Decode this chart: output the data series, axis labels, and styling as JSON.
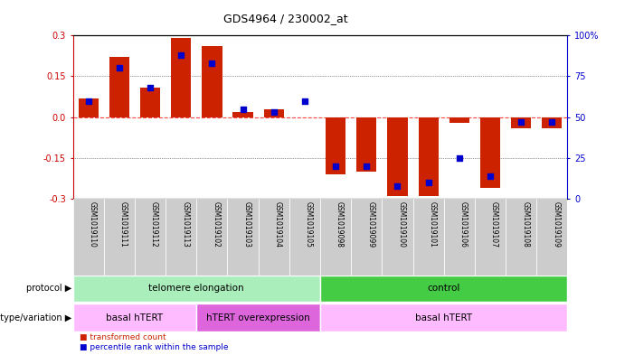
{
  "title": "GDS4964 / 230002_at",
  "samples": [
    "GSM1019110",
    "GSM1019111",
    "GSM1019112",
    "GSM1019113",
    "GSM1019102",
    "GSM1019103",
    "GSM1019104",
    "GSM1019105",
    "GSM1019098",
    "GSM1019099",
    "GSM1019100",
    "GSM1019101",
    "GSM1019106",
    "GSM1019107",
    "GSM1019108",
    "GSM1019109"
  ],
  "red_bars": [
    0.07,
    0.22,
    0.11,
    0.29,
    0.26,
    0.02,
    0.03,
    0.0,
    -0.21,
    -0.2,
    -0.29,
    -0.29,
    -0.02,
    -0.26,
    -0.04,
    -0.04
  ],
  "blue_dots": [
    60,
    80,
    68,
    88,
    83,
    55,
    53,
    60,
    20,
    20,
    8,
    10,
    25,
    14,
    47,
    47
  ],
  "ylim": [
    -0.3,
    0.3
  ],
  "right_ylim": [
    0,
    100
  ],
  "yticks": [
    -0.3,
    -0.15,
    0.0,
    0.15,
    0.3
  ],
  "right_yticks": [
    0,
    25,
    50,
    75,
    100
  ],
  "right_yticklabels": [
    "0",
    "25",
    "50",
    "75",
    "100%"
  ],
  "protocol_groups": [
    {
      "label": "telomere elongation",
      "start": 0,
      "end": 8,
      "color": "#aaeebb"
    },
    {
      "label": "control",
      "start": 8,
      "end": 16,
      "color": "#44cc44"
    }
  ],
  "genotype_groups": [
    {
      "label": "basal hTERT",
      "start": 0,
      "end": 4,
      "color": "#ffbbff"
    },
    {
      "label": "hTERT overexpression",
      "start": 4,
      "end": 8,
      "color": "#dd66dd"
    },
    {
      "label": "basal hTERT",
      "start": 8,
      "end": 16,
      "color": "#ffbbff"
    }
  ],
  "bar_color": "#cc2200",
  "dot_color": "#0000cc",
  "zero_line_color": "#ff4444",
  "dotted_line_color": "#333333",
  "bg_color": "#ffffff",
  "xtick_bg_color": "#cccccc",
  "right_axis_color": "#0000cc",
  "legend_red_label": "transformed count",
  "legend_blue_label": "percentile rank within the sample",
  "protocol_label": "protocol",
  "genotype_label": "genotype/variation"
}
